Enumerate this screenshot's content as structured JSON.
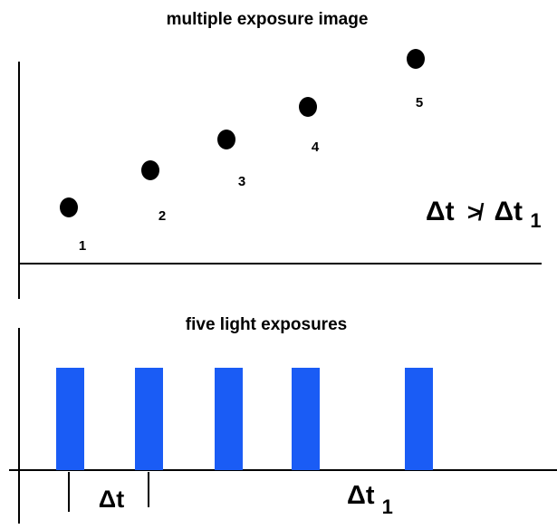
{
  "title_top": "multiple exposure image",
  "title_bottom": "five light  exposures",
  "dot_labels": [
    "1",
    "2",
    "3",
    "4",
    "5"
  ],
  "inequality": {
    "left": "Δt",
    "symbol": "≯",
    "right_base": "Δt",
    "right_sub": "1"
  },
  "interval_label": "Δt",
  "interval1_label": {
    "base": "Δt",
    "sub": "1"
  },
  "colors": {
    "dot": "#000000",
    "pulse": "#1a5cf5",
    "text_accent": "#1a5cf5",
    "axis": "#000000"
  }
}
